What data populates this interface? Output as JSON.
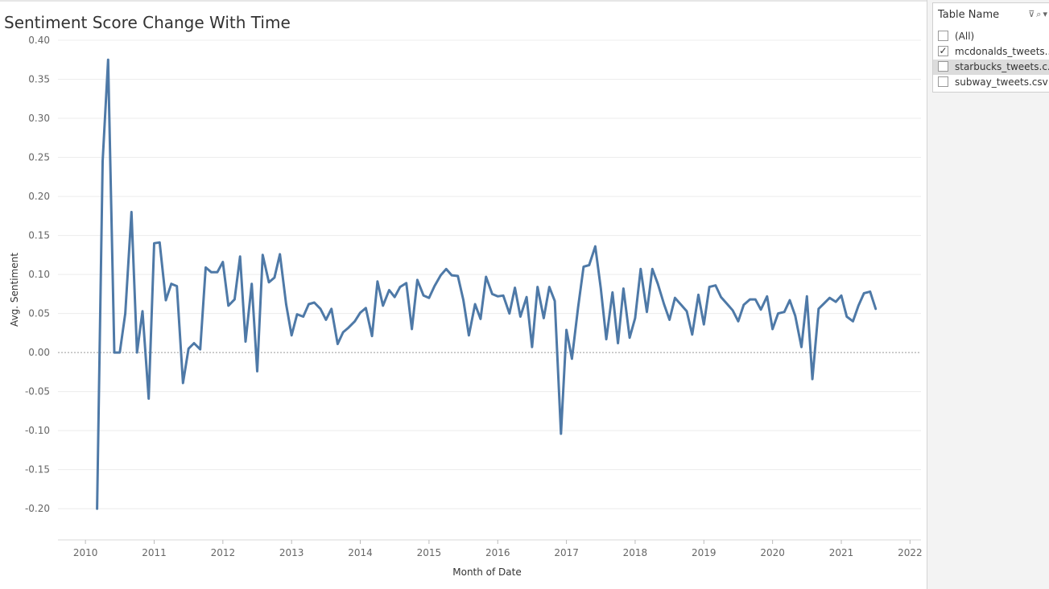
{
  "title": "Sentiment Score Change With Time",
  "chart_data": {
    "type": "line",
    "xlabel": "Month of Date",
    "ylabel": "Avg. Sentiment",
    "x_ticks": [
      "2010",
      "2011",
      "2012",
      "2013",
      "2014",
      "2015",
      "2016",
      "2017",
      "2018",
      "2019",
      "2020",
      "2021",
      "2022"
    ],
    "y_ticks": [
      "0.40",
      "0.35",
      "0.30",
      "0.25",
      "0.20",
      "0.15",
      "0.10",
      "0.05",
      "0.00",
      "-0.05",
      "-0.10",
      "-0.15",
      "-0.20"
    ],
    "xlim": [
      2009.6,
      2022.16
    ],
    "ylim": [
      -0.24,
      0.4
    ],
    "line_color": "#4e79a7",
    "gridlines": true,
    "zero_line": true,
    "x": [
      2010.17,
      2010.25,
      2010.33,
      2010.42,
      2010.5,
      2010.58,
      2010.67,
      2010.75,
      2010.83,
      2010.92,
      2011.0,
      2011.08,
      2011.17,
      2011.25,
      2011.33,
      2011.42,
      2011.5,
      2011.58,
      2011.67,
      2011.75,
      2011.83,
      2011.92,
      2012.0,
      2012.08,
      2012.17,
      2012.25,
      2012.33,
      2012.42,
      2012.5,
      2012.58,
      2012.67,
      2012.75,
      2012.83,
      2012.92,
      2013.0,
      2013.08,
      2013.17,
      2013.25,
      2013.33,
      2013.42,
      2013.5,
      2013.58,
      2013.67,
      2013.75,
      2013.83,
      2013.92,
      2014.0,
      2014.08,
      2014.17,
      2014.25,
      2014.33,
      2014.42,
      2014.5,
      2014.58,
      2014.67,
      2014.75,
      2014.83,
      2014.92,
      2015.0,
      2015.08,
      2015.17,
      2015.25,
      2015.33,
      2015.42,
      2015.5,
      2015.58,
      2015.67,
      2015.75,
      2015.83,
      2015.92,
      2016.0,
      2016.08,
      2016.17,
      2016.25,
      2016.33,
      2016.42,
      2016.5,
      2016.58,
      2016.67,
      2016.75,
      2016.83,
      2016.92,
      2017.0,
      2017.08,
      2017.17,
      2017.25,
      2017.33,
      2017.42,
      2017.5,
      2017.58,
      2017.67,
      2017.75,
      2017.83,
      2017.92,
      2018.0,
      2018.08,
      2018.17,
      2018.25,
      2018.33,
      2018.42,
      2018.5,
      2018.58,
      2018.67,
      2018.75,
      2018.83,
      2018.92,
      2019.0,
      2019.08,
      2019.17,
      2019.25,
      2019.33,
      2019.42,
      2019.5,
      2019.58,
      2019.67,
      2019.75,
      2019.83,
      2019.92,
      2020.0,
      2020.08,
      2020.17,
      2020.25,
      2020.33,
      2020.42,
      2020.5,
      2020.58,
      2020.67,
      2020.75,
      2020.83,
      2020.92,
      2021.0,
      2021.08,
      2021.17,
      2021.25,
      2021.33,
      2021.42,
      2021.5
    ],
    "y": [
      -0.2,
      0.245,
      0.375,
      0.0,
      0.0,
      0.05,
      0.18,
      0.0,
      0.053,
      -0.059,
      0.14,
      0.141,
      0.067,
      0.088,
      0.085,
      -0.039,
      0.005,
      0.012,
      0.004,
      0.109,
      0.103,
      0.103,
      0.116,
      0.06,
      0.068,
      0.123,
      0.014,
      0.088,
      -0.024,
      0.125,
      0.09,
      0.096,
      0.126,
      0.062,
      0.022,
      0.049,
      0.046,
      0.062,
      0.064,
      0.056,
      0.042,
      0.056,
      0.011,
      0.026,
      0.032,
      0.04,
      0.051,
      0.057,
      0.021,
      0.091,
      0.06,
      0.08,
      0.071,
      0.084,
      0.089,
      0.03,
      0.093,
      0.073,
      0.07,
      0.085,
      0.099,
      0.107,
      0.099,
      0.098,
      0.067,
      0.022,
      0.062,
      0.043,
      0.097,
      0.075,
      0.072,
      0.073,
      0.05,
      0.083,
      0.046,
      0.071,
      0.007,
      0.084,
      0.044,
      0.084,
      0.066,
      -0.104,
      0.029,
      -0.008,
      0.058,
      0.11,
      0.112,
      0.136,
      0.082,
      0.017,
      0.077,
      0.012,
      0.082,
      0.019,
      0.044,
      0.107,
      0.052,
      0.107,
      0.088,
      0.062,
      0.042,
      0.07,
      0.061,
      0.053,
      0.023,
      0.074,
      0.036,
      0.084,
      0.086,
      0.071,
      0.063,
      0.054,
      0.04,
      0.061,
      0.068,
      0.068,
      0.055,
      0.072,
      0.03,
      0.05,
      0.052,
      0.067,
      0.047,
      0.007,
      0.072,
      -0.034,
      0.056,
      0.063,
      0.07,
      0.065,
      0.073,
      0.046,
      0.04,
      0.06,
      0.076,
      0.078,
      0.056
    ]
  },
  "filter": {
    "title": "Table Name",
    "icons": [
      "filter-clear-icon",
      "search-icon",
      "dropdown-icon"
    ],
    "items": [
      {
        "label": "(All)",
        "checked": false
      },
      {
        "label": "mcdonalds_tweets...",
        "checked": true
      },
      {
        "label": "starbucks_tweets.c...",
        "checked": false
      },
      {
        "label": "subway_tweets.csv",
        "checked": false
      }
    ]
  }
}
